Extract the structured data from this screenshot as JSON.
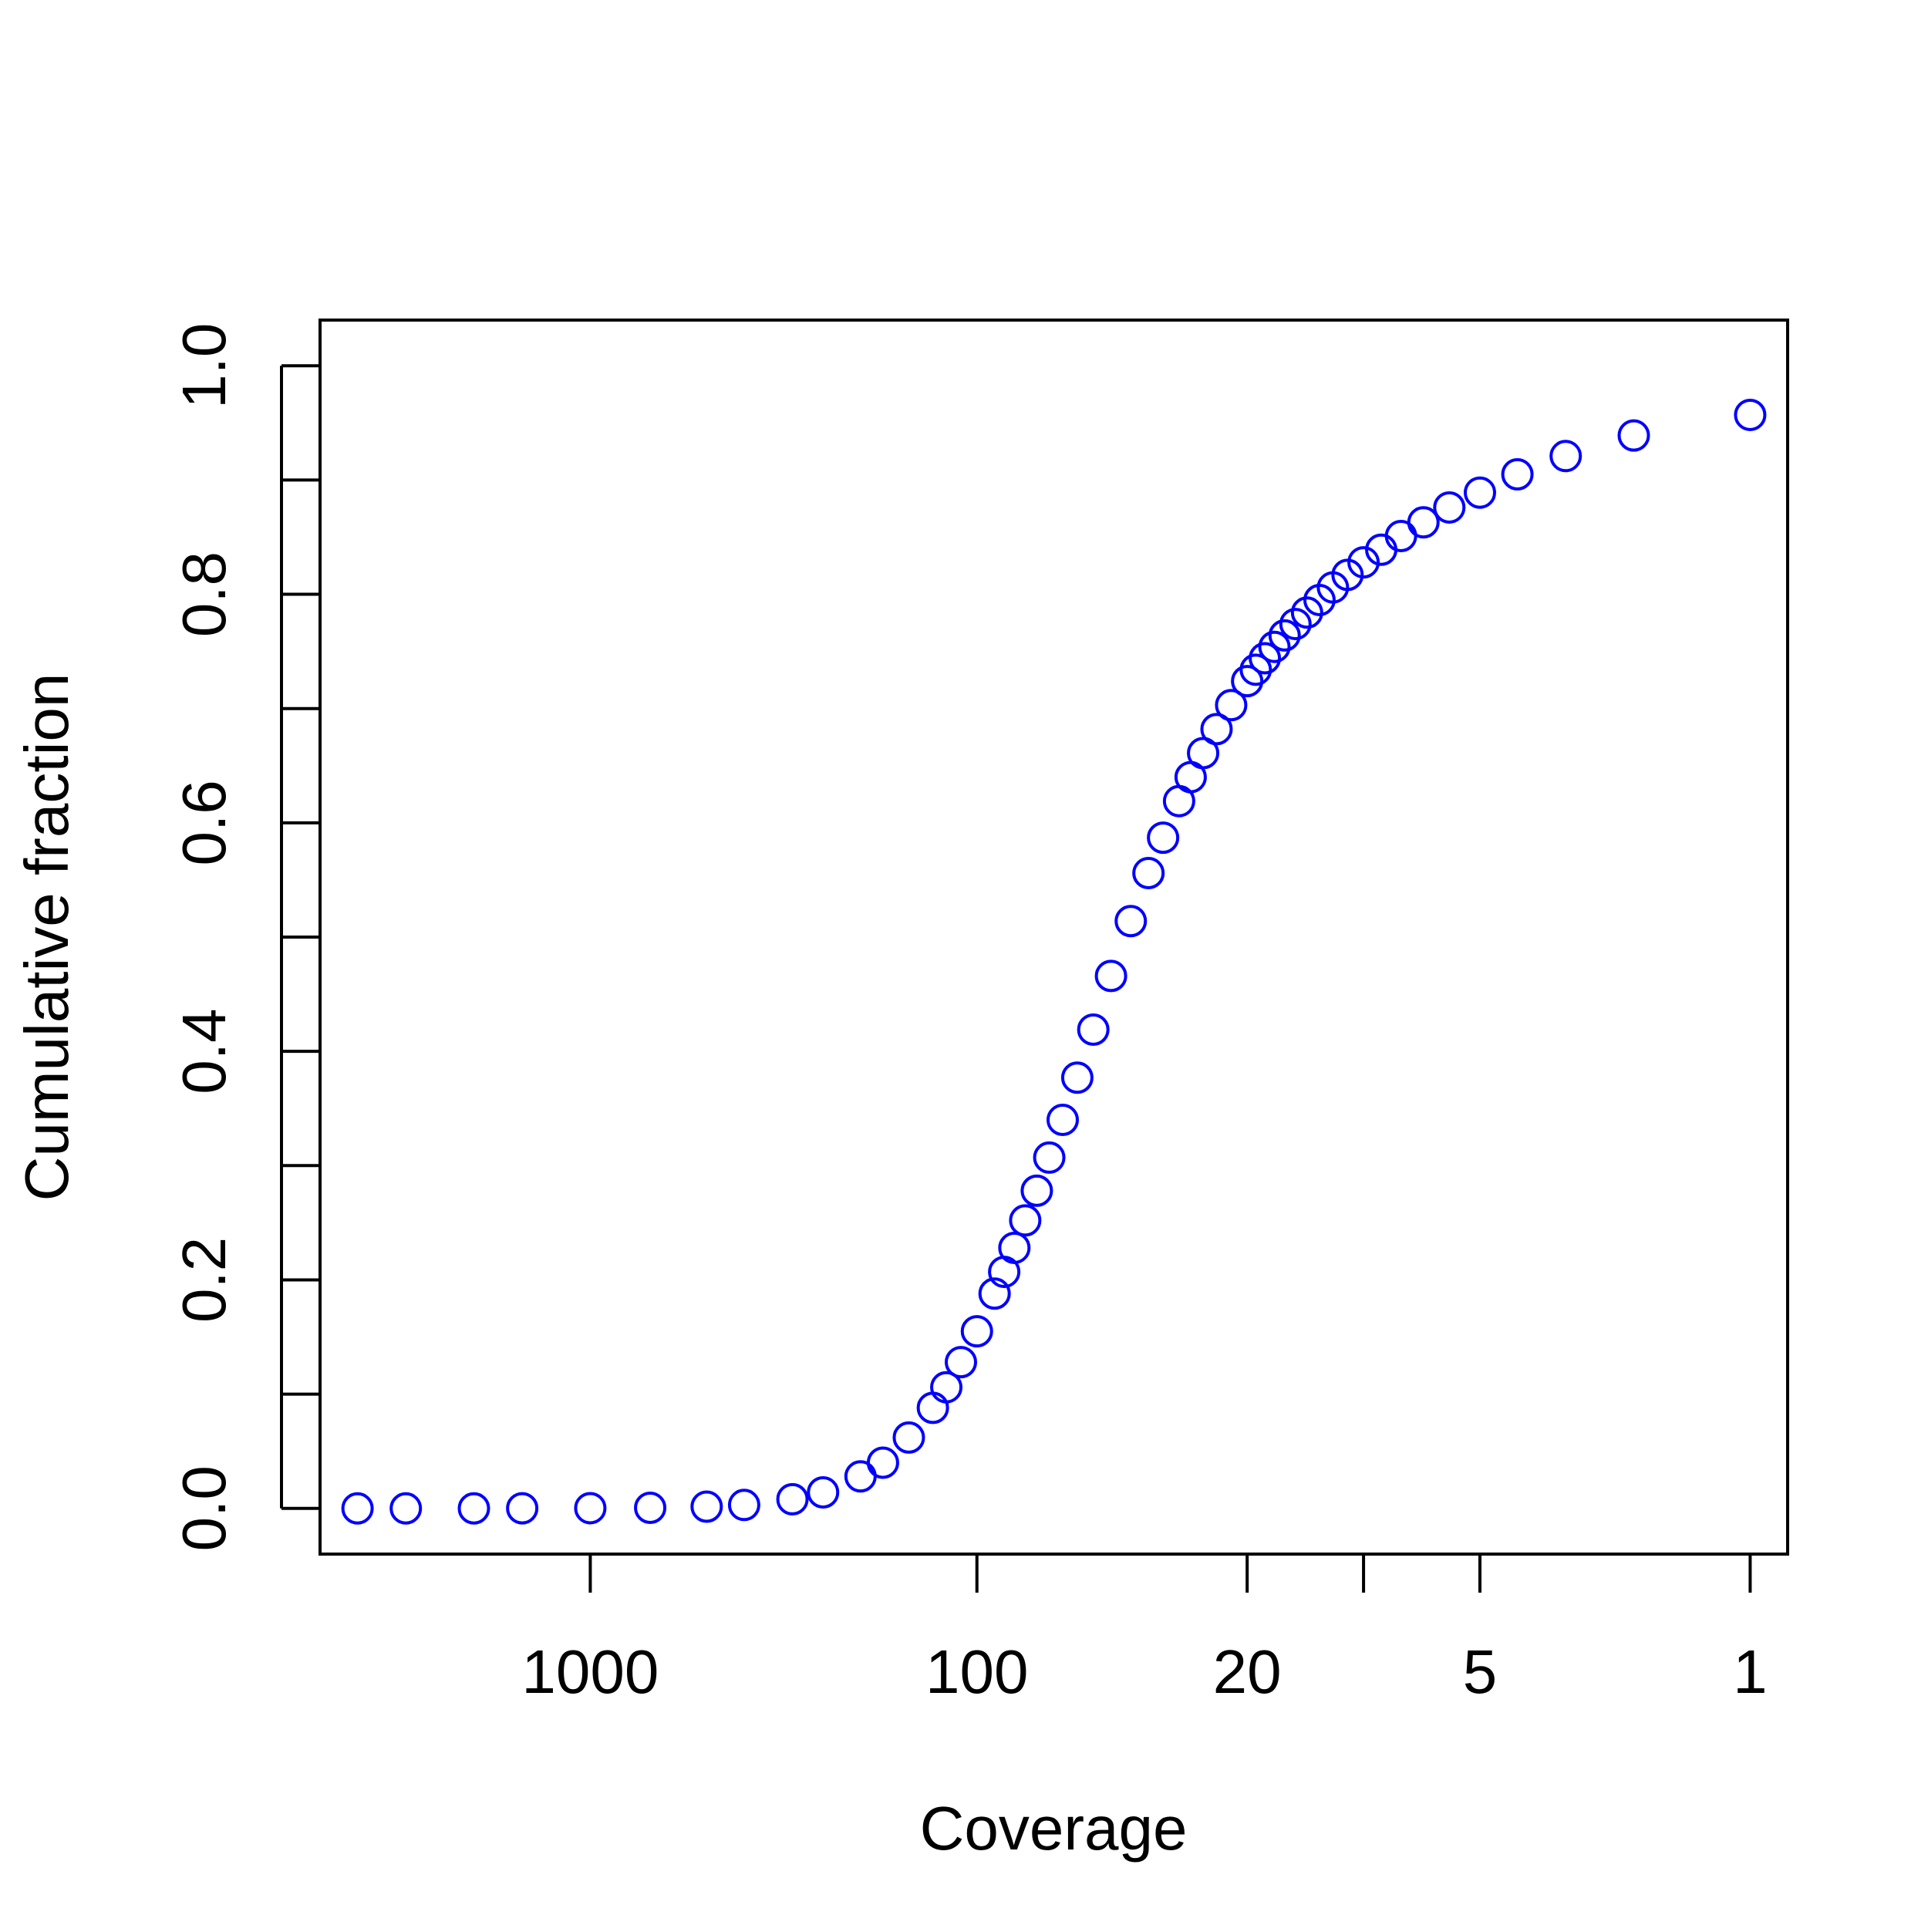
{
  "chart_data": {
    "type": "scatter",
    "title": "",
    "xlabel": "Coverage",
    "ylabel": "Cumulative fraction",
    "x_scale": "log",
    "x_reversed": true,
    "xlim": [
      5000,
      0.8
    ],
    "ylim": [
      -0.04,
      1.04
    ],
    "x_ticks": [
      1000,
      100,
      20,
      10,
      5,
      1
    ],
    "x_tick_labels": [
      "1000",
      "100",
      "20",
      "",
      "5",
      "1"
    ],
    "y_ticks": [
      0.0,
      0.1,
      0.2,
      0.3,
      0.4,
      0.5,
      0.6,
      0.7,
      0.8,
      0.9,
      1.0
    ],
    "y_tick_labels": [
      "0.0",
      "",
      "0.2",
      "",
      "0.4",
      "",
      "0.6",
      "",
      "0.8",
      "",
      "1.0"
    ],
    "grid": false,
    "marker": "open-circle",
    "marker_color": "#0000ff",
    "series": [
      {
        "x": [
          1,
          2,
          3,
          4,
          5,
          6,
          7,
          8,
          9,
          10,
          11,
          12,
          13,
          14,
          15,
          16,
          17,
          18,
          19,
          20,
          22,
          24,
          26,
          28,
          30,
          33,
          36,
          40,
          45,
          50,
          55,
          60,
          65,
          70,
          75,
          80,
          85,
          90,
          100,
          110,
          120,
          130,
          150,
          175,
          200,
          250,
          300,
          400,
          500,
          700,
          1000,
          1500,
          2000,
          3000,
          4000
        ],
        "y": [
          0.957,
          0.939,
          0.921,
          0.905,
          0.889,
          0.876,
          0.863,
          0.851,
          0.839,
          0.828,
          0.817,
          0.806,
          0.795,
          0.784,
          0.774,
          0.764,
          0.754,
          0.744,
          0.734,
          0.724,
          0.703,
          0.682,
          0.661,
          0.64,
          0.619,
          0.587,
          0.556,
          0.514,
          0.466,
          0.419,
          0.377,
          0.34,
          0.307,
          0.278,
          0.252,
          0.228,
          0.207,
          0.188,
          0.155,
          0.128,
          0.106,
          0.088,
          0.062,
          0.04,
          0.028,
          0.014,
          0.008,
          0.003,
          0.0015,
          0.0005,
          0.0002,
          0.0001,
          0.0,
          0.0,
          0.0
        ]
      }
    ]
  }
}
